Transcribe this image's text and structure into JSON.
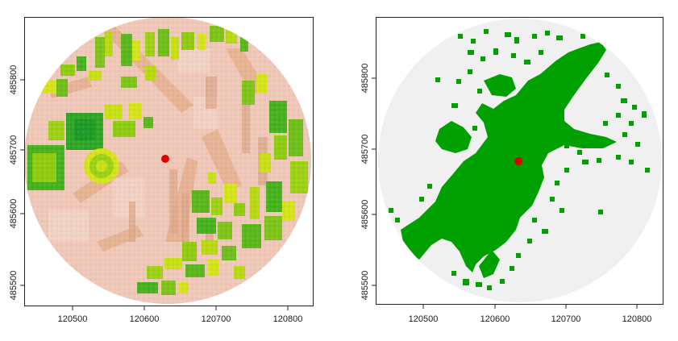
{
  "colors": {
    "background": "#ffffff",
    "frame": "#222222",
    "left_base": "#efc8b8",
    "left_road": "#e8b18f",
    "left_shadow": "#dfb79a",
    "left_veg_dark": "#46b21e",
    "left_veg_mid": "#8fcc10",
    "left_veg_light": "#d6e41a",
    "right_base": "#f0f0f0",
    "right_visible": "#00a000",
    "viewpoint": "#e00000"
  },
  "panels": [
    {
      "name": "elevation",
      "x_ticks": [
        "120500",
        "120600",
        "120700",
        "120800"
      ],
      "y_ticks": [
        "485500",
        "485600",
        "485700",
        "485800"
      ]
    },
    {
      "name": "viewshed",
      "x_ticks": [
        "120500",
        "120600",
        "120700",
        "120800"
      ],
      "y_ticks": [
        "485500",
        "485600",
        "485700",
        "485800"
      ]
    }
  ],
  "map_extent": {
    "x": [
      120440,
      120840
    ],
    "y": [
      485480,
      485880
    ]
  },
  "circle": {
    "center": [
      120640,
      485680
    ],
    "radius": 200
  },
  "viewpoint": {
    "x": 120635,
    "y": 485690
  }
}
